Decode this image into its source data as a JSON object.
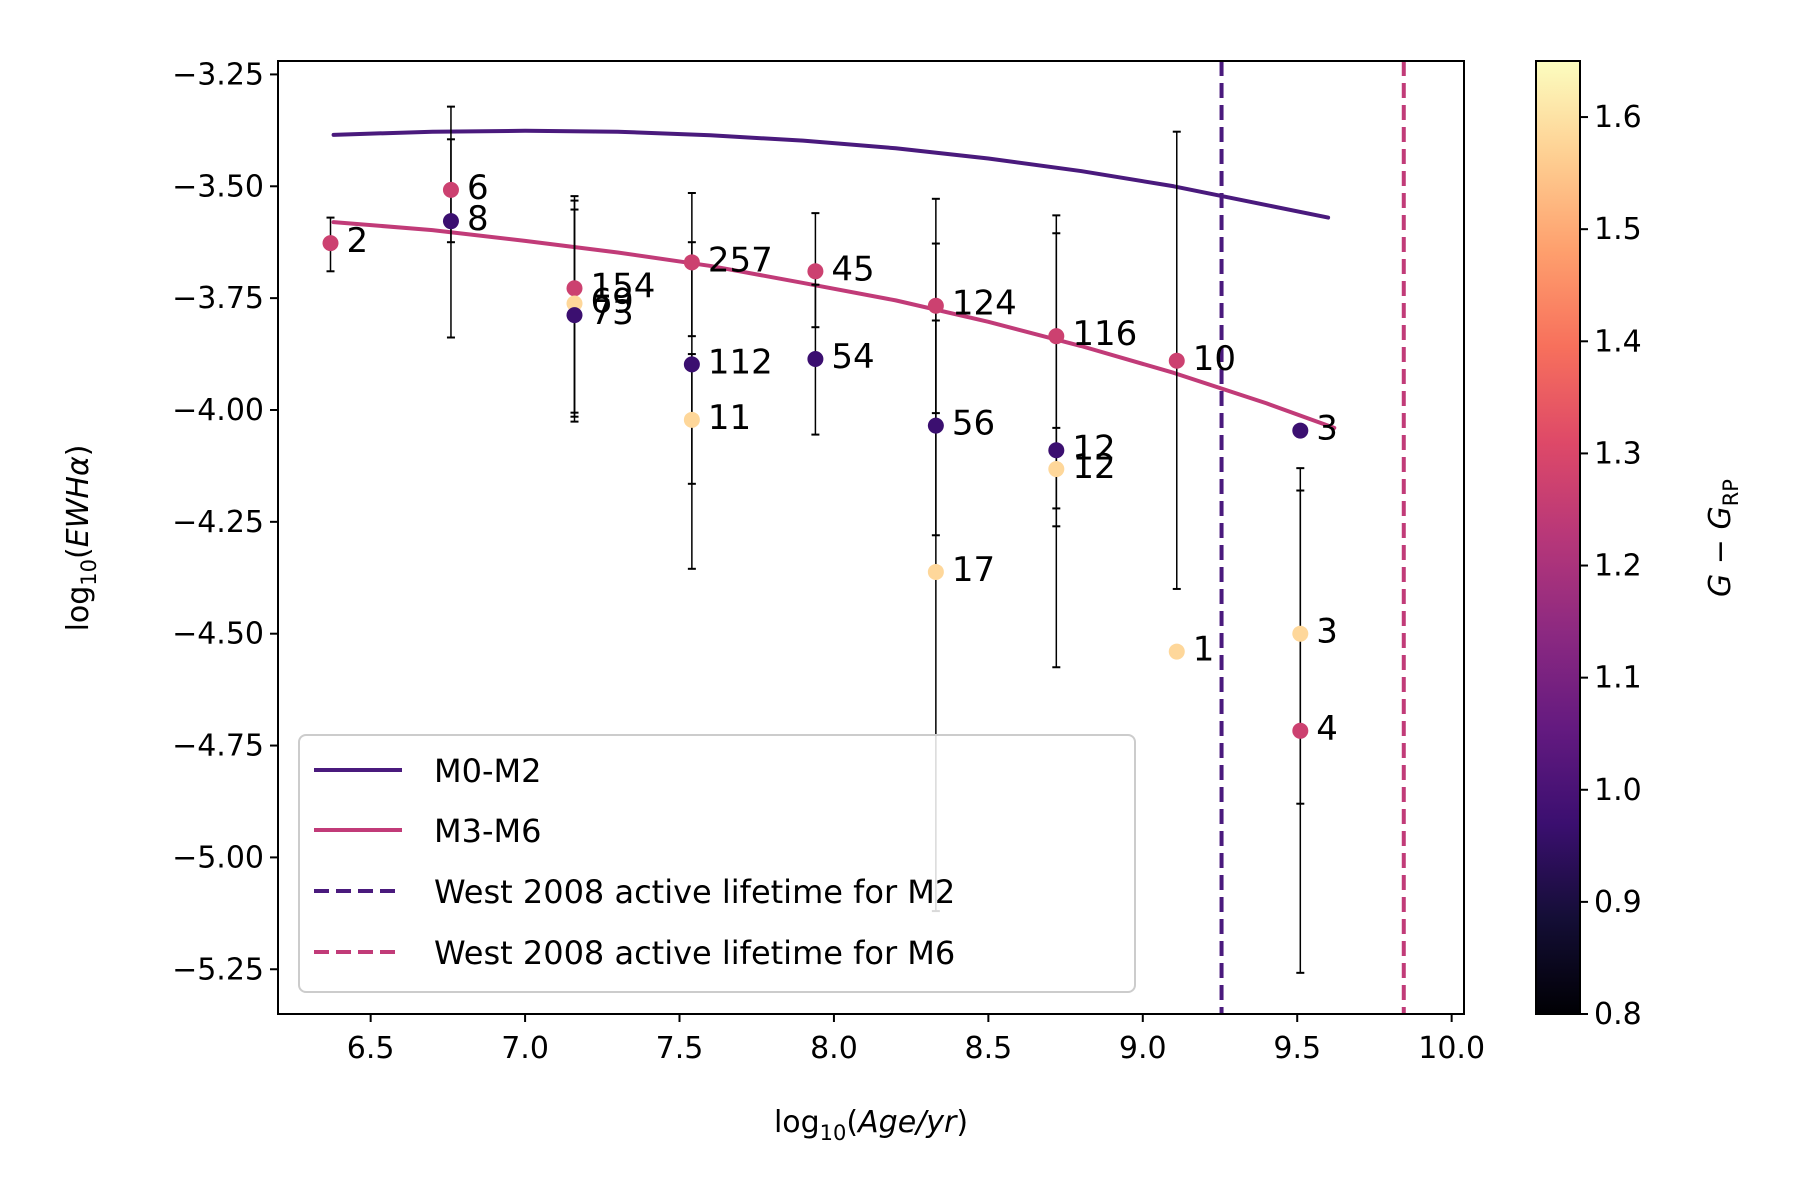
{
  "chart_data": {
    "type": "scatter",
    "xlabel_prefix": "log",
    "xlabel_sub": "10",
    "xlabel_arg": "Age/yr",
    "ylabel_prefix": "log",
    "ylabel_sub": "10",
    "ylabel_arg": "EWHα",
    "xlim": [
      6.2,
      10.04
    ],
    "ylim": [
      -5.35,
      -3.22
    ],
    "xticks": [
      "6.5",
      "7.0",
      "7.5",
      "8.0",
      "8.5",
      "9.0",
      "9.5",
      "10.0"
    ],
    "yticks": [
      "−3.25",
      "−3.50",
      "−3.75",
      "−4.00",
      "−4.25",
      "−4.50",
      "−4.75",
      "−5.00",
      "−5.25"
    ],
    "colorbar": {
      "label_main": "G − G",
      "label_sub": "RP",
      "range": [
        0.8,
        1.65
      ],
      "ticks": [
        "0.8",
        "0.9",
        "1.0",
        "1.1",
        "1.2",
        "1.3",
        "1.4",
        "1.5",
        "1.6"
      ],
      "colormap": "magma"
    },
    "lines": [
      {
        "name": "M0-M2",
        "color": "#4a1a7d",
        "style": "solid",
        "x": [
          6.38,
          6.7,
          7.0,
          7.3,
          7.6,
          7.9,
          8.2,
          8.5,
          8.8,
          9.1,
          9.4,
          9.6
        ],
        "y": [
          -3.385,
          -3.378,
          -3.376,
          -3.378,
          -3.386,
          -3.398,
          -3.415,
          -3.438,
          -3.466,
          -3.5,
          -3.542,
          -3.57
        ]
      },
      {
        "name": "M3-M6",
        "color": "#c13b78",
        "style": "solid",
        "x": [
          6.38,
          6.7,
          7.0,
          7.3,
          7.6,
          7.9,
          8.2,
          8.5,
          8.8,
          9.1,
          9.4,
          9.62
        ],
        "y": [
          -3.58,
          -3.598,
          -3.622,
          -3.648,
          -3.678,
          -3.716,
          -3.755,
          -3.803,
          -3.857,
          -3.917,
          -3.985,
          -4.04
        ]
      },
      {
        "name": "West 2008 active lifetime for M2",
        "color": "#4a1a7d",
        "style": "dashed",
        "vertical_x": 9.255
      },
      {
        "name": "West 2008 active lifetime for M6",
        "color": "#c13b78",
        "style": "dashed",
        "vertical_x": 9.845
      }
    ],
    "points": [
      {
        "x": 6.37,
        "y": -3.627,
        "color_value": 1.27,
        "yerr_low": -3.69,
        "yerr_high": -3.57,
        "label": "2"
      },
      {
        "x": 6.76,
        "y": -3.508,
        "color_value": 1.27,
        "yerr_low": -3.625,
        "yerr_high": -3.395,
        "label": "6"
      },
      {
        "x": 6.76,
        "y": -3.578,
        "color_value": 0.97,
        "yerr_low": -3.838,
        "yerr_high": -3.322,
        "label": "8"
      },
      {
        "x": 7.16,
        "y": -3.728,
        "color_value": 1.27,
        "yerr_low": -4.015,
        "yerr_high": -3.532,
        "label": "154"
      },
      {
        "x": 7.16,
        "y": -3.762,
        "color_value": 1.58,
        "yerr_low": -4.006,
        "yerr_high": -3.552,
        "label": "69"
      },
      {
        "x": 7.16,
        "y": -3.788,
        "color_value": 0.97,
        "yerr_low": -4.026,
        "yerr_high": -3.522,
        "label": "73"
      },
      {
        "x": 7.54,
        "y": -3.67,
        "color_value": 1.27,
        "yerr_low": -3.835,
        "yerr_high": -3.515,
        "label": "257"
      },
      {
        "x": 7.54,
        "y": -3.898,
        "color_value": 0.97,
        "yerr_low": -4.355,
        "yerr_high": -3.625,
        "label": "112"
      },
      {
        "x": 7.54,
        "y": -4.022,
        "color_value": 1.58,
        "yerr_low": -4.165,
        "yerr_high": -3.875,
        "label": "11"
      },
      {
        "x": 7.94,
        "y": -3.69,
        "color_value": 1.27,
        "yerr_low": -3.815,
        "yerr_high": -3.56,
        "label": "45"
      },
      {
        "x": 7.94,
        "y": -3.886,
        "color_value": 0.97,
        "yerr_low": -4.055,
        "yerr_high": -3.72,
        "label": "54"
      },
      {
        "x": 8.33,
        "y": -3.767,
        "color_value": 1.27,
        "yerr_low": -4.007,
        "yerr_high": -3.528,
        "label": "124"
      },
      {
        "x": 8.33,
        "y": -4.035,
        "color_value": 0.97,
        "yerr_low": -4.28,
        "yerr_high": -3.8,
        "label": "56"
      },
      {
        "x": 8.33,
        "y": -4.362,
        "color_value": 1.58,
        "yerr_low": -5.12,
        "yerr_high": -3.628,
        "label": "17"
      },
      {
        "x": 8.72,
        "y": -3.835,
        "color_value": 1.27,
        "yerr_low": -4.26,
        "yerr_high": -3.565,
        "label": "116"
      },
      {
        "x": 8.72,
        "y": -4.09,
        "color_value": 0.97,
        "yerr_low": -4.575,
        "yerr_high": -3.605,
        "label": "12"
      },
      {
        "x": 8.72,
        "y": -4.132,
        "color_value": 1.58,
        "yerr_low": -4.22,
        "yerr_high": -4.04,
        "label": "12"
      },
      {
        "x": 9.11,
        "y": -3.89,
        "color_value": 1.27,
        "yerr_low": -4.4,
        "yerr_high": -3.378,
        "label": "10"
      },
      {
        "x": 9.11,
        "y": -4.54,
        "color_value": 1.58,
        "label": "1"
      },
      {
        "x": 9.51,
        "y": -4.046,
        "color_value": 0.97,
        "label": "3"
      },
      {
        "x": 9.51,
        "y": -4.5,
        "color_value": 1.58,
        "yerr_low": -4.88,
        "yerr_high": -4.18,
        "label": "3"
      },
      {
        "x": 9.51,
        "y": -4.717,
        "color_value": 1.27,
        "yerr_low": -5.258,
        "yerr_high": -4.13,
        "label": "4"
      }
    ],
    "legend_placement": "lower-left",
    "grid": false
  }
}
